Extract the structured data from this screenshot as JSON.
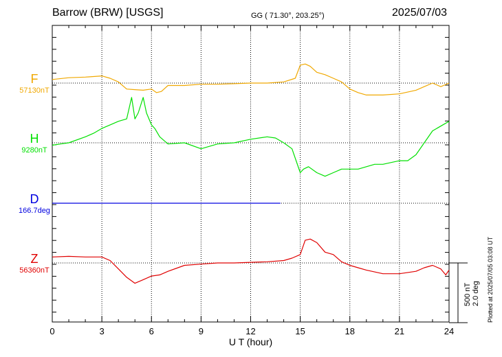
{
  "header": {
    "station": "Barrow (BRW)  [USGS]",
    "coords": "GG ( 71.30°, 203.25°)",
    "date": "2025/07/03"
  },
  "plotted_note": "Plotted at 2025/07/05 03:08 UT",
  "scale": {
    "line1": "500 nT",
    "line2": "2.0 deg"
  },
  "channels": [
    {
      "symbol": "F",
      "baseline": "57130nT",
      "color": "#f0a800"
    },
    {
      "symbol": "H",
      "baseline": "9280nT",
      "color": "#00e000"
    },
    {
      "symbol": "D",
      "baseline": "166.7deg",
      "color": "#0000e0"
    },
    {
      "symbol": "Z",
      "baseline": "56360nT",
      "color": "#e00000"
    }
  ],
  "chart_data": {
    "type": "line",
    "xlabel": "U T (hour)",
    "xlim": [
      0,
      24
    ],
    "xticks": [
      "0",
      "3",
      "6",
      "9",
      "12",
      "15",
      "18",
      "21",
      "24"
    ],
    "y_units": "nT offset from baseline (scale bar 500 nT / 2.0 deg)",
    "series": [
      {
        "name": "F",
        "x": [
          0,
          1,
          2,
          3,
          3.5,
          4,
          4.5,
          5,
          5.5,
          6,
          6.3,
          6.6,
          7,
          8,
          9,
          10,
          11,
          12,
          13,
          14,
          14.7,
          15,
          15.3,
          15.6,
          16,
          16.5,
          17,
          17.5,
          18,
          18.5,
          19,
          20,
          21,
          22,
          22.5,
          23,
          23.5,
          24
        ],
        "y": [
          30,
          45,
          50,
          60,
          40,
          10,
          -50,
          -55,
          -60,
          -50,
          -80,
          -70,
          -20,
          -20,
          -10,
          -10,
          -5,
          0,
          0,
          10,
          40,
          150,
          160,
          140,
          90,
          70,
          40,
          10,
          -50,
          -80,
          -100,
          -100,
          -90,
          -60,
          -30,
          0,
          -30,
          0
        ]
      },
      {
        "name": "H",
        "x": [
          0,
          0.5,
          1,
          2,
          2.5,
          3,
          3.5,
          4,
          4.5,
          4.8,
          5,
          5.2,
          5.5,
          5.7,
          6,
          6.2,
          6.5,
          7,
          8,
          9,
          10,
          11,
          12,
          13,
          13.5,
          14,
          14.5,
          15,
          15.2,
          15.5,
          16,
          16.5,
          17,
          17.5,
          18,
          18.5,
          19,
          19.5,
          20,
          21,
          21.5,
          22,
          23,
          24
        ],
        "y": [
          -20,
          -10,
          0,
          50,
          80,
          120,
          150,
          180,
          200,
          380,
          200,
          250,
          380,
          250,
          150,
          120,
          50,
          -10,
          0,
          -50,
          -10,
          0,
          30,
          50,
          40,
          0,
          -50,
          -250,
          -220,
          -200,
          -250,
          -280,
          -250,
          -220,
          -220,
          -220,
          -200,
          -180,
          -180,
          -150,
          -150,
          -100,
          100,
          180
        ]
      },
      {
        "name": "D",
        "x": [
          0,
          13.8
        ],
        "y": [
          0,
          0
        ]
      },
      {
        "name": "Z",
        "x": [
          0,
          1,
          2,
          3,
          3.5,
          4,
          4.5,
          5,
          5.5,
          6,
          6.5,
          7,
          8,
          9,
          10,
          11,
          12,
          13,
          14,
          14.5,
          15,
          15.3,
          15.6,
          16,
          16.5,
          17,
          17.5,
          18,
          18.5,
          19,
          20,
          21,
          22,
          22.5,
          23,
          23.5,
          23.8,
          24
        ],
        "y": [
          50,
          55,
          50,
          50,
          20,
          -50,
          -120,
          -170,
          -140,
          -110,
          -100,
          -70,
          -20,
          -10,
          0,
          0,
          5,
          10,
          20,
          40,
          70,
          190,
          200,
          170,
          90,
          70,
          10,
          -20,
          -40,
          -60,
          -90,
          -90,
          -70,
          -40,
          -20,
          -50,
          -100,
          -60
        ]
      }
    ]
  }
}
